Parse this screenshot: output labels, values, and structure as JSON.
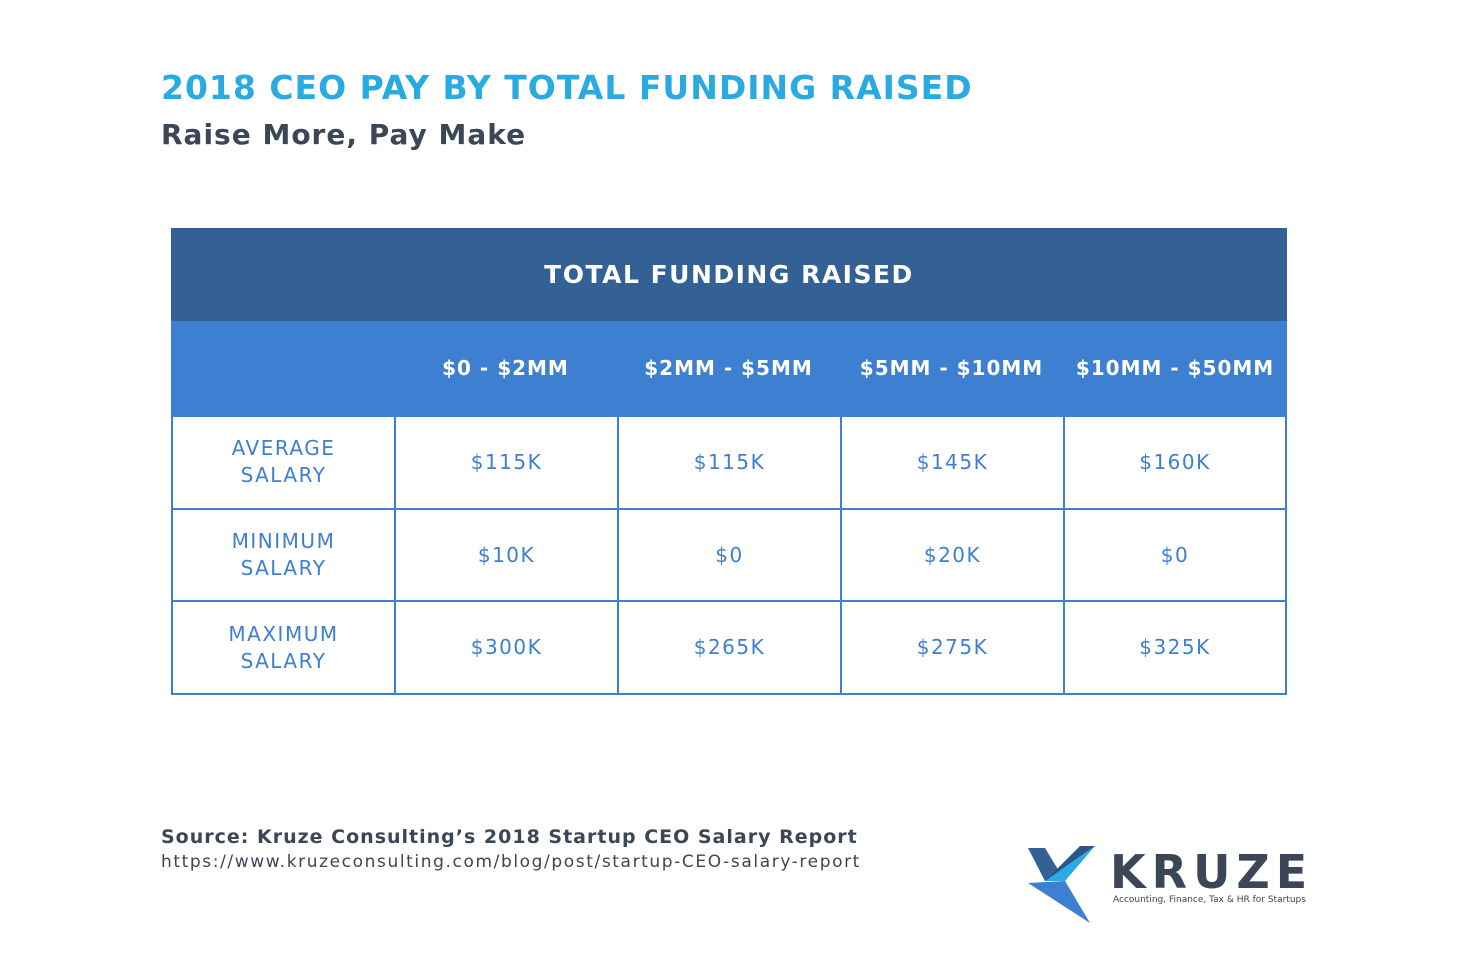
{
  "header": {
    "title": "2018 CEO PAY BY TOTAL FUNDING RAISED",
    "subtitle": "Raise More, Pay Make"
  },
  "table": {
    "caption": "TOTAL FUNDING RAISED",
    "columns": [
      "$0 - $2MM",
      "$2MM - $5MM",
      "$5MM - $10MM",
      "$10MM - $50MM"
    ],
    "rows": [
      {
        "label": "AVERAGE SALARY",
        "cells": [
          "$115K",
          "$115K",
          "$145K",
          "$160K"
        ]
      },
      {
        "label": "MINIMUM SALARY",
        "cells": [
          "$10K",
          "$0",
          "$20K",
          "$0"
        ]
      },
      {
        "label": "MAXIMUM SALARY",
        "cells": [
          "$300K",
          "$265K",
          "$275K",
          "$325K"
        ]
      }
    ]
  },
  "footer": {
    "source": "Source: Kruze Consulting’s 2018 Startup CEO Salary Report",
    "url": "https://www.kruzeconsulting.com/blog/post/startup-CEO-salary-report"
  },
  "logo": {
    "name": "KRUZE",
    "tagline": "Accounting, Finance, Tax & HR for Startups"
  }
}
